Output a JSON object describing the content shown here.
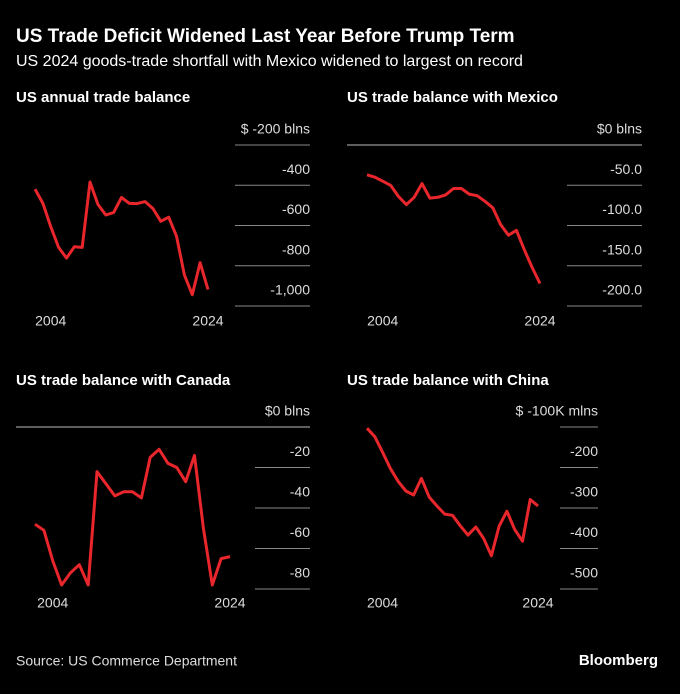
{
  "title": "US Trade Deficit Widened Last Year Before Trump Term",
  "subtitle": "US 2024 goods-trade shortfall with Mexico widened to largest on record",
  "source": "Source: US Commerce Department",
  "brand": "Bloomberg",
  "chart_data": [
    {
      "type": "line",
      "title": "US annual trade balance",
      "color": "#e8262b",
      "x": [
        2002,
        2003,
        2004,
        2005,
        2006,
        2007,
        2008,
        2009,
        2010,
        2011,
        2012,
        2013,
        2014,
        2015,
        2016,
        2017,
        2018,
        2019,
        2020,
        2021,
        2022,
        2023,
        2024
      ],
      "values": [
        -419,
        -490,
        -605,
        -709,
        -762,
        -706,
        -709,
        -384,
        -495,
        -548,
        -536,
        -461,
        -490,
        -491,
        -481,
        -516,
        -579,
        -559,
        -653,
        -846,
        -944,
        -785,
        -918
      ],
      "xlim": [
        2002,
        2024
      ],
      "xticks": [
        2004,
        2024
      ],
      "ylim": [
        -1000,
        -200
      ],
      "yticks": [
        {
          "value": -200,
          "label": "$ -200 blns"
        },
        -400,
        -600,
        -800,
        {
          "value": -1000,
          "label": "-1,000"
        }
      ]
    },
    {
      "type": "line",
      "title": "US trade balance with Mexico",
      "color": "#e8262b",
      "x": [
        2002,
        2003,
        2004,
        2005,
        2006,
        2007,
        2008,
        2009,
        2010,
        2011,
        2012,
        2013,
        2014,
        2015,
        2016,
        2017,
        2018,
        2019,
        2020,
        2021,
        2022,
        2023,
        2024
      ],
      "values": [
        -37,
        -40,
        -45,
        -50,
        -64,
        -74,
        -65,
        -48,
        -66,
        -65,
        -62,
        -54,
        -54,
        -61,
        -63,
        -70,
        -78,
        -99,
        -112,
        -106,
        -130,
        -152,
        -172
      ],
      "xlim": [
        2002,
        2024
      ],
      "xticks": [
        2004,
        2024
      ],
      "ylim": [
        -200,
        0
      ],
      "yticks": [
        {
          "value": 0,
          "label": "$0 blns"
        },
        {
          "value": -50,
          "label": "-50.0"
        },
        {
          "value": -100,
          "label": "-100.0"
        },
        {
          "value": -150,
          "label": "-150.0"
        },
        {
          "value": -200,
          "label": "-200.0"
        }
      ]
    },
    {
      "type": "line",
      "title": "US trade balance with Canada",
      "color": "#e8262b",
      "x": [
        2002,
        2003,
        2004,
        2005,
        2006,
        2007,
        2008,
        2009,
        2010,
        2011,
        2012,
        2013,
        2014,
        2015,
        2016,
        2017,
        2018,
        2019,
        2020,
        2021,
        2022,
        2023,
        2024
      ],
      "values": [
        -48,
        -51,
        -66,
        -78,
        -72,
        -68,
        -78,
        -22,
        -28,
        -34,
        -32,
        -32,
        -35,
        -15,
        -11,
        -18,
        -20,
        -27,
        -14,
        -50,
        -78,
        -65,
        -64
      ],
      "xlim": [
        2002,
        2024
      ],
      "xticks": [
        2004,
        2024
      ],
      "ylim": [
        -80,
        0
      ],
      "yticks": [
        {
          "value": 0,
          "label": "$0 blns"
        },
        -20,
        -40,
        -60,
        -80
      ]
    },
    {
      "type": "line",
      "title": "US trade balance with China",
      "color": "#e8262b",
      "x": [
        2002,
        2003,
        2004,
        2005,
        2006,
        2007,
        2008,
        2009,
        2010,
        2011,
        2012,
        2013,
        2014,
        2015,
        2016,
        2017,
        2018,
        2019,
        2020,
        2021,
        2022,
        2023,
        2024
      ],
      "values": [
        -103,
        -124,
        -162,
        -202,
        -234,
        -258,
        -268,
        -227,
        -273,
        -295,
        -315,
        -318,
        -344,
        -367,
        -347,
        -375,
        -418,
        -345,
        -308,
        -353,
        -382,
        -279,
        -295
      ],
      "xlim": [
        2002,
        2024
      ],
      "xticks": [
        2004,
        2024
      ],
      "ylim": [
        -500,
        -100
      ],
      "yticks": [
        {
          "value": -100,
          "label": "$ -100K mlns"
        },
        -200,
        -300,
        -400,
        -500
      ]
    }
  ]
}
